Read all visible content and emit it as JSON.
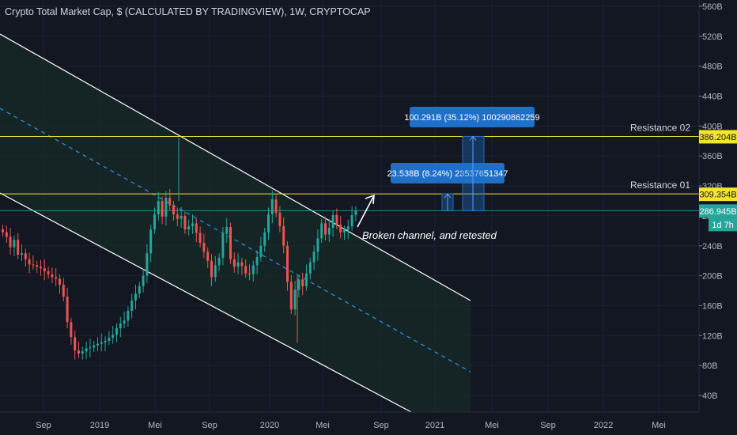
{
  "header": {
    "title": "Crypto Total Market Cap, $ (CALCULATED BY TRADINGVIEW), 1W, CRYPTOCAP"
  },
  "colors": {
    "background": "#131722",
    "grid": "#1e2230",
    "up": "#26a69a",
    "down": "#ef5350",
    "resistance": "#f5e52a",
    "channel": "#ffffff",
    "midline": "#2f8de4",
    "channel_fill": "#173028",
    "measure": "#1e6fc8",
    "current_price": "#26a69a"
  },
  "chart_data": {
    "type": "candlestick",
    "timeframe": "1W",
    "x_ticks": [
      "Sep",
      "2019",
      "Mei",
      "Sep",
      "2020",
      "Mei",
      "Sep",
      "2021",
      "Mei",
      "Sep",
      "2022",
      "Mei"
    ],
    "y_ticks": [
      "560B",
      "520B",
      "480B",
      "440B",
      "400B",
      "360B",
      "320B",
      "280B",
      "240B",
      "200B",
      "160B",
      "120B",
      "80B",
      "40B"
    ],
    "ylim": [
      20,
      570
    ],
    "price_labels": [
      {
        "text": "386.204B",
        "value": 386.204,
        "style": "resistance"
      },
      {
        "text": "309.354B",
        "value": 309.354,
        "style": "resistance"
      },
      {
        "text": "286.945B",
        "value": 286.945,
        "style": "current"
      },
      {
        "text": "1d 7h",
        "style": "countdown"
      }
    ],
    "horizontal_levels": [
      {
        "label": "Resistance 02",
        "value": 386.204
      },
      {
        "label": "Resistance 01",
        "value": 309.354
      }
    ],
    "current_price": 286.945,
    "annotations": {
      "broken_channel": "Broken channel, and retested",
      "measure_small": "23.538B (8.24%) 23537651347",
      "measure_large": "100.291B (35.12%) 100290862259"
    },
    "closes": [
      258,
      252,
      238,
      248,
      228,
      230,
      222,
      215,
      214,
      212,
      210,
      206,
      202,
      198,
      196,
      188,
      172,
      138,
      118,
      100,
      96,
      99,
      103,
      104,
      107,
      109,
      111,
      113,
      117,
      121,
      130,
      136,
      140,
      153,
      167,
      176,
      186,
      200,
      230,
      262,
      282,
      300,
      279,
      304,
      294,
      282,
      276,
      280,
      262,
      266,
      270,
      257,
      244,
      232,
      220,
      198,
      214,
      224,
      256,
      265,
      222,
      212,
      218,
      213,
      203,
      202,
      214,
      225,
      240,
      258,
      282,
      302,
      284,
      266,
      240,
      192,
      155,
      181,
      195,
      186,
      203,
      218,
      232,
      250,
      270,
      255,
      264,
      281,
      268,
      258,
      261,
      266,
      281,
      286.945
    ]
  }
}
